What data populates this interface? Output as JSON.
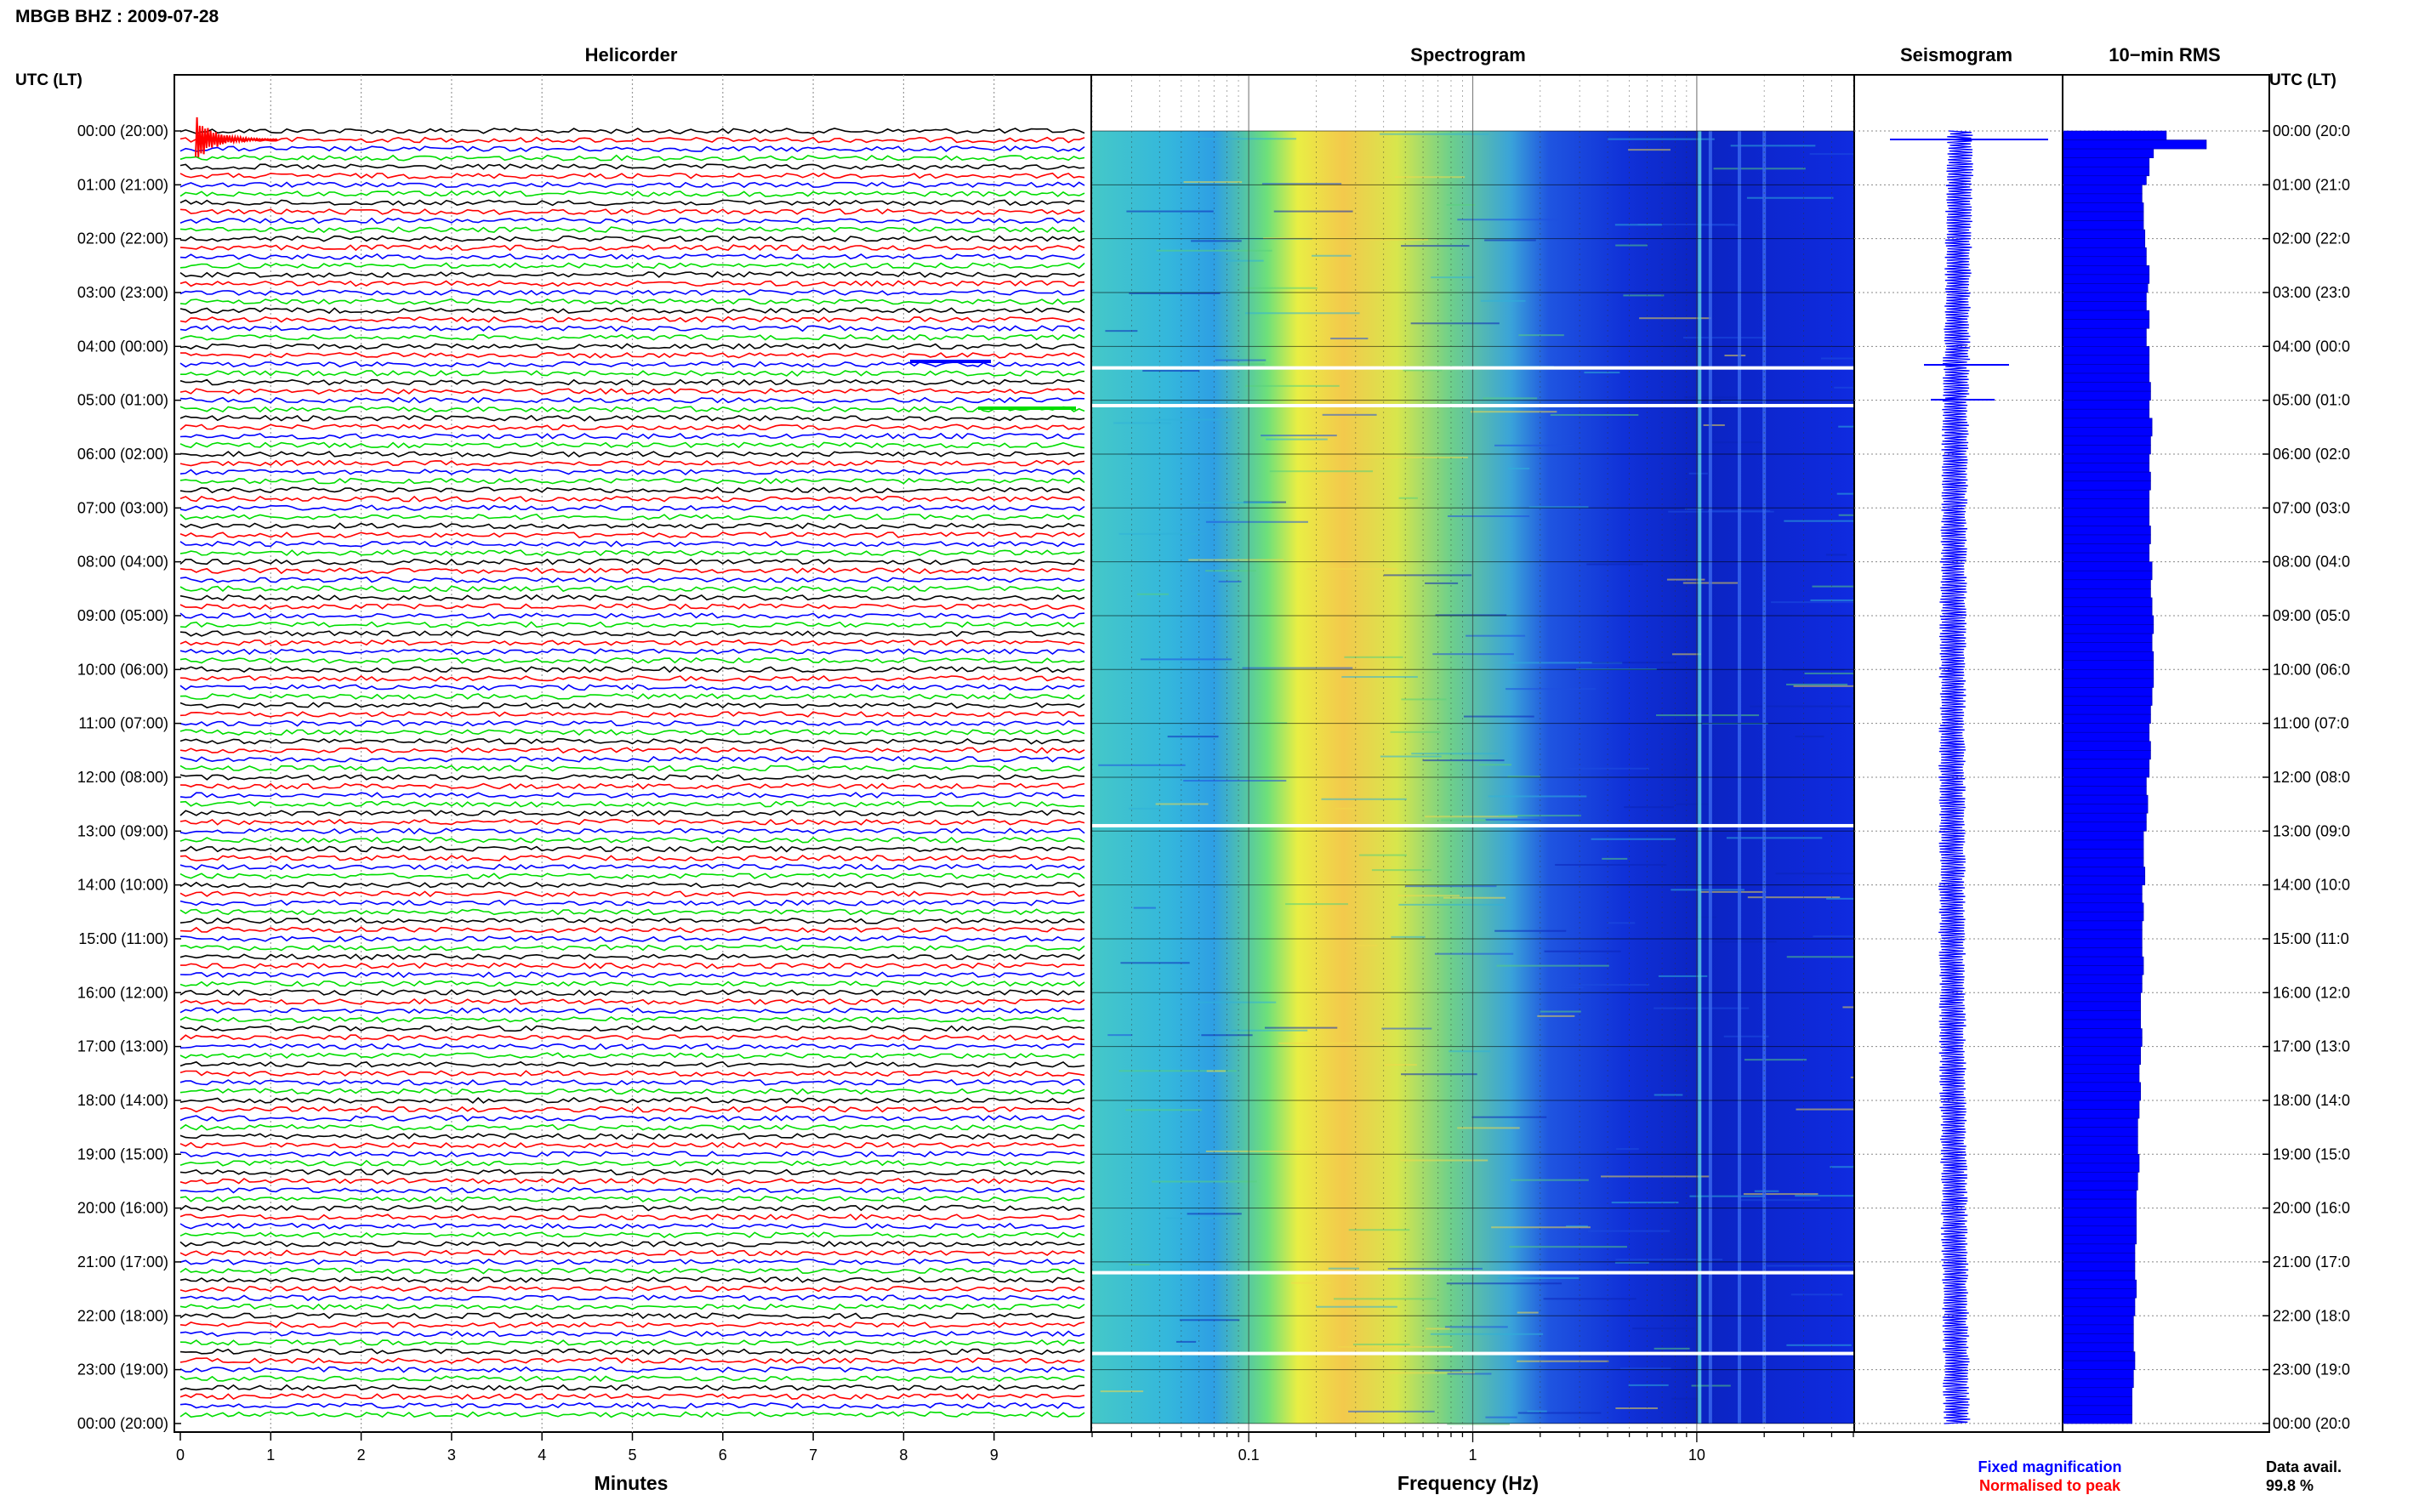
{
  "page_title": "MBGB BHZ : 2009-07-28",
  "panels": {
    "helicorder": "Helicorder",
    "spectrogram": "Spectrogram",
    "seismogram": "Seismogram",
    "rms": "10−min RMS"
  },
  "axis_header_left": "UTC (LT)",
  "axis_header_right": "UTC (LT)",
  "time_labels_left": [
    "00:00 (20:00)",
    "01:00 (21:00)",
    "02:00 (22:00)",
    "03:00 (23:00)",
    "04:00 (00:00)",
    "05:00 (01:00)",
    "06:00 (02:00)",
    "07:00 (03:00)",
    "08:00 (04:00)",
    "09:00 (05:00)",
    "10:00 (06:00)",
    "11:00 (07:00)",
    "12:00 (08:00)",
    "13:00 (09:00)",
    "14:00 (10:00)",
    "15:00 (11:00)",
    "16:00 (12:00)",
    "17:00 (13:00)",
    "18:00 (14:00)",
    "19:00 (15:00)",
    "20:00 (16:00)",
    "21:00 (17:00)",
    "22:00 (18:00)",
    "23:00 (19:00)",
    "00:00 (20:00)"
  ],
  "time_labels_right": [
    "00:00 (20:0",
    "01:00 (21:0",
    "02:00 (22:0",
    "03:00 (23:0",
    "04:00 (00:0",
    "05:00 (01:0",
    "06:00 (02:0",
    "07:00 (03:0",
    "08:00 (04:0",
    "09:00 (05:0",
    "10:00 (06:0",
    "11:00 (07:0",
    "12:00 (08:0",
    "13:00 (09:0",
    "14:00 (10:0",
    "15:00 (11:0",
    "16:00 (12:0",
    "17:00 (13:0",
    "18:00 (14:0",
    "19:00 (15:0",
    "20:00 (16:0",
    "21:00 (17:0",
    "22:00 (18:0",
    "23:00 (19:0",
    "00:00 (20:0"
  ],
  "footer": {
    "fixed_magnification": "Fixed magnification",
    "normalised_to_peak": "Normalised to peak",
    "data_avail_label": "Data avail.",
    "data_avail_value": "99.8 %"
  },
  "colors": {
    "trace_cycle": [
      "#000000",
      "#ff0000",
      "#0000ff",
      "#00dd00"
    ],
    "fixed": "#0000ff",
    "normalised": "#ff0000",
    "rms_bar": "#0000ff",
    "spectrogram_low": "#0a1ae6",
    "spectrogram_high": "#ffe600"
  },
  "chart_data": [
    {
      "type": "line",
      "name": "helicorder",
      "title": "Helicorder",
      "xlabel": "Minutes",
      "x_ticks": [
        "0",
        "1",
        "2",
        "3",
        "4",
        "5",
        "6",
        "7",
        "8",
        "9"
      ],
      "xlim": [
        0,
        10
      ],
      "traces_per_hour": 6,
      "hours": 24
    },
    {
      "type": "heatmap",
      "name": "spectrogram",
      "title": "Spectrogram",
      "xlabel": "Frequency (Hz)",
      "x_scale": "log",
      "x_ticks": [
        "0.1",
        "1",
        "10"
      ],
      "xlim": [
        0.02,
        50
      ],
      "energy_peak_hz": [
        0.2,
        1.0
      ],
      "gap_hours": [
        4.4,
        5.1,
        12.9,
        21.2,
        22.7
      ]
    },
    {
      "type": "line",
      "name": "seismogram",
      "title": "Seismogram",
      "events_hours": [
        0.15,
        4.35,
        5.0
      ]
    },
    {
      "type": "bar",
      "name": "rms",
      "title": "10−min RMS",
      "values": [
        0.72,
        1.0,
        0.63,
        0.6,
        0.6,
        0.58,
        0.55,
        0.55,
        0.56,
        0.56,
        0.56,
        0.57,
        0.57,
        0.58,
        0.58,
        0.6,
        0.6,
        0.59,
        0.58,
        0.58,
        0.6,
        0.6,
        0.58,
        0.58,
        0.6,
        0.6,
        0.6,
        0.6,
        0.61,
        0.61,
        0.6,
        0.6,
        0.62,
        0.62,
        0.61,
        0.61,
        0.6,
        0.6,
        0.61,
        0.61,
        0.6,
        0.6,
        0.6,
        0.6,
        0.61,
        0.61,
        0.6,
        0.6,
        0.62,
        0.62,
        0.61,
        0.61,
        0.62,
        0.62,
        0.63,
        0.63,
        0.62,
        0.62,
        0.63,
        0.63,
        0.63,
        0.63,
        0.62,
        0.62,
        0.61,
        0.61,
        0.6,
        0.6,
        0.61,
        0.61,
        0.6,
        0.6,
        0.58,
        0.58,
        0.59,
        0.59,
        0.58,
        0.58,
        0.56,
        0.56,
        0.56,
        0.56,
        0.57,
        0.57,
        0.55,
        0.55,
        0.56,
        0.56,
        0.55,
        0.55,
        0.55,
        0.55,
        0.56,
        0.56,
        0.55,
        0.55,
        0.54,
        0.54,
        0.54,
        0.54,
        0.55,
        0.55,
        0.54,
        0.54,
        0.53,
        0.53,
        0.54,
        0.54,
        0.53,
        0.53,
        0.52,
        0.52,
        0.52,
        0.52,
        0.53,
        0.53,
        0.52,
        0.52,
        0.51,
        0.51,
        0.51,
        0.51,
        0.51,
        0.51,
        0.5,
        0.5,
        0.5,
        0.5,
        0.51,
        0.51,
        0.5,
        0.5,
        0.49,
        0.49,
        0.49,
        0.49,
        0.5,
        0.5,
        0.49,
        0.49,
        0.48,
        0.48,
        0.48,
        0.48
      ]
    }
  ]
}
